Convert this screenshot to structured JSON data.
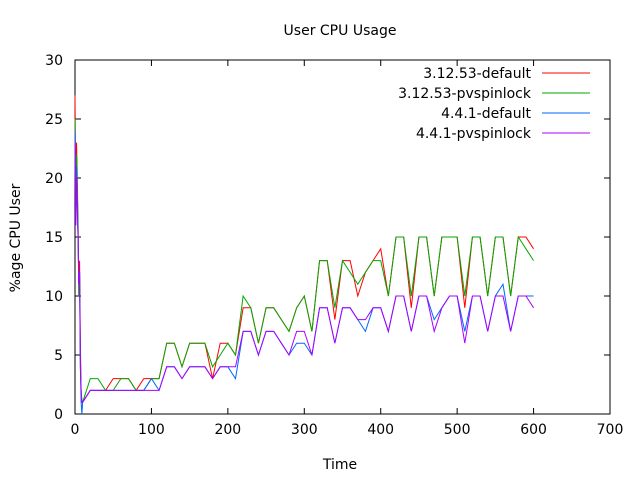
{
  "chart_data": {
    "type": "line",
    "title": "User CPU Usage",
    "xlabel": "Time",
    "ylabel": "%age CPU User",
    "xlim": [
      0,
      700
    ],
    "ylim": [
      0,
      30
    ],
    "xticks": [
      0,
      100,
      200,
      300,
      400,
      500,
      600,
      700
    ],
    "yticks": [
      0,
      5,
      10,
      15,
      20,
      25,
      30
    ],
    "grid": false,
    "legend_position": "top-right",
    "series": [
      {
        "name": "3.12.53-default",
        "color": "#ff0000",
        "x": [
          0,
          1,
          2,
          3,
          4,
          5,
          6,
          7,
          8,
          9,
          10,
          20,
          30,
          40,
          50,
          60,
          70,
          80,
          90,
          100,
          110,
          120,
          130,
          140,
          150,
          160,
          170,
          180,
          190,
          200,
          210,
          220,
          230,
          240,
          250,
          260,
          270,
          280,
          290,
          300,
          310,
          320,
          330,
          340,
          350,
          360,
          370,
          380,
          390,
          400,
          410,
          420,
          430,
          440,
          450,
          460,
          470,
          480,
          490,
          500,
          510,
          520,
          530,
          540,
          550,
          560,
          570,
          580,
          590,
          600
        ],
        "y": [
          27,
          18,
          23,
          20,
          16,
          10,
          13,
          6,
          2,
          1,
          1,
          2,
          2,
          2,
          3,
          3,
          3,
          2,
          3,
          3,
          3,
          6,
          6,
          4,
          6,
          6,
          6,
          3,
          6,
          6,
          5,
          9,
          9,
          6,
          9,
          9,
          8,
          7,
          9,
          10,
          7,
          13,
          13,
          8,
          13,
          13,
          10,
          12,
          13,
          14,
          10,
          15,
          15,
          9,
          15,
          15,
          10,
          15,
          15,
          15,
          9,
          15,
          15,
          10,
          15,
          15,
          10,
          15,
          15,
          14
        ]
      },
      {
        "name": "3.12.53-pvspinlock",
        "color": "#00aa00",
        "x": [
          0,
          1,
          2,
          3,
          4,
          5,
          6,
          7,
          8,
          9,
          10,
          20,
          30,
          40,
          50,
          60,
          70,
          80,
          90,
          100,
          110,
          120,
          130,
          140,
          150,
          160,
          170,
          180,
          190,
          200,
          210,
          220,
          230,
          240,
          250,
          260,
          270,
          280,
          290,
          300,
          310,
          320,
          330,
          340,
          350,
          360,
          370,
          380,
          390,
          400,
          410,
          420,
          430,
          440,
          450,
          460,
          470,
          480,
          490,
          500,
          510,
          520,
          530,
          540,
          550,
          560,
          570,
          580,
          590,
          600
        ],
        "y": [
          25,
          17,
          22,
          19,
          16,
          10,
          12,
          5,
          2,
          1,
          1,
          3,
          3,
          2,
          2,
          3,
          3,
          2,
          2,
          3,
          3,
          6,
          6,
          4,
          6,
          6,
          6,
          4,
          5,
          6,
          5,
          10,
          9,
          6,
          9,
          9,
          8,
          7,
          9,
          10,
          7,
          13,
          13,
          9,
          13,
          12,
          11,
          12,
          13,
          13,
          10,
          15,
          15,
          10,
          15,
          15,
          10,
          15,
          15,
          15,
          10,
          15,
          15,
          10,
          15,
          15,
          10,
          15,
          14,
          13
        ]
      },
      {
        "name": "4.4.1-default",
        "color": "#0066ff",
        "x": [
          0,
          1,
          2,
          3,
          4,
          5,
          6,
          7,
          8,
          9,
          10,
          20,
          30,
          40,
          50,
          60,
          70,
          80,
          90,
          100,
          110,
          120,
          130,
          140,
          150,
          160,
          170,
          180,
          190,
          200,
          210,
          220,
          230,
          240,
          250,
          260,
          270,
          280,
          290,
          300,
          310,
          320,
          330,
          340,
          350,
          360,
          370,
          380,
          390,
          400,
          410,
          420,
          430,
          440,
          450,
          460,
          470,
          480,
          490,
          500,
          510,
          520,
          530,
          540,
          550,
          560,
          570,
          580,
          590,
          600
        ],
        "y": [
          24,
          16,
          21,
          18,
          15,
          11,
          12,
          4,
          1,
          0,
          1,
          2,
          2,
          2,
          2,
          2,
          2,
          2,
          2,
          3,
          2,
          4,
          4,
          3,
          4,
          4,
          4,
          3,
          4,
          4,
          3,
          7,
          7,
          5,
          7,
          7,
          6,
          5,
          6,
          6,
          5,
          9,
          9,
          6,
          9,
          9,
          8,
          7,
          9,
          9,
          7,
          10,
          10,
          7,
          10,
          10,
          8,
          9,
          10,
          10,
          7,
          10,
          10,
          7,
          10,
          11,
          7,
          10,
          10,
          10
        ]
      },
      {
        "name": "4.4.1-pvspinlock",
        "color": "#aa00ff",
        "x": [
          0,
          1,
          2,
          3,
          4,
          5,
          6,
          7,
          8,
          9,
          10,
          20,
          30,
          40,
          50,
          60,
          70,
          80,
          90,
          100,
          110,
          120,
          130,
          140,
          150,
          160,
          170,
          180,
          190,
          200,
          210,
          220,
          230,
          240,
          250,
          260,
          270,
          280,
          290,
          300,
          310,
          320,
          330,
          340,
          350,
          360,
          370,
          380,
          390,
          400,
          410,
          420,
          430,
          440,
          450,
          460,
          470,
          480,
          490,
          500,
          510,
          520,
          530,
          540,
          550,
          560,
          570,
          580,
          590,
          600
        ],
        "y": [
          23,
          16,
          20,
          17,
          15,
          11,
          12,
          4,
          2,
          1,
          1,
          2,
          2,
          2,
          2,
          2,
          2,
          2,
          2,
          2,
          2,
          4,
          4,
          3,
          4,
          4,
          4,
          3,
          4,
          4,
          4,
          7,
          7,
          5,
          7,
          7,
          6,
          5,
          7,
          7,
          5,
          9,
          9,
          6,
          9,
          9,
          8,
          8,
          9,
          9,
          7,
          10,
          10,
          7,
          10,
          10,
          7,
          9,
          10,
          10,
          6,
          10,
          10,
          7,
          10,
          10,
          7,
          10,
          10,
          9
        ]
      }
    ]
  }
}
